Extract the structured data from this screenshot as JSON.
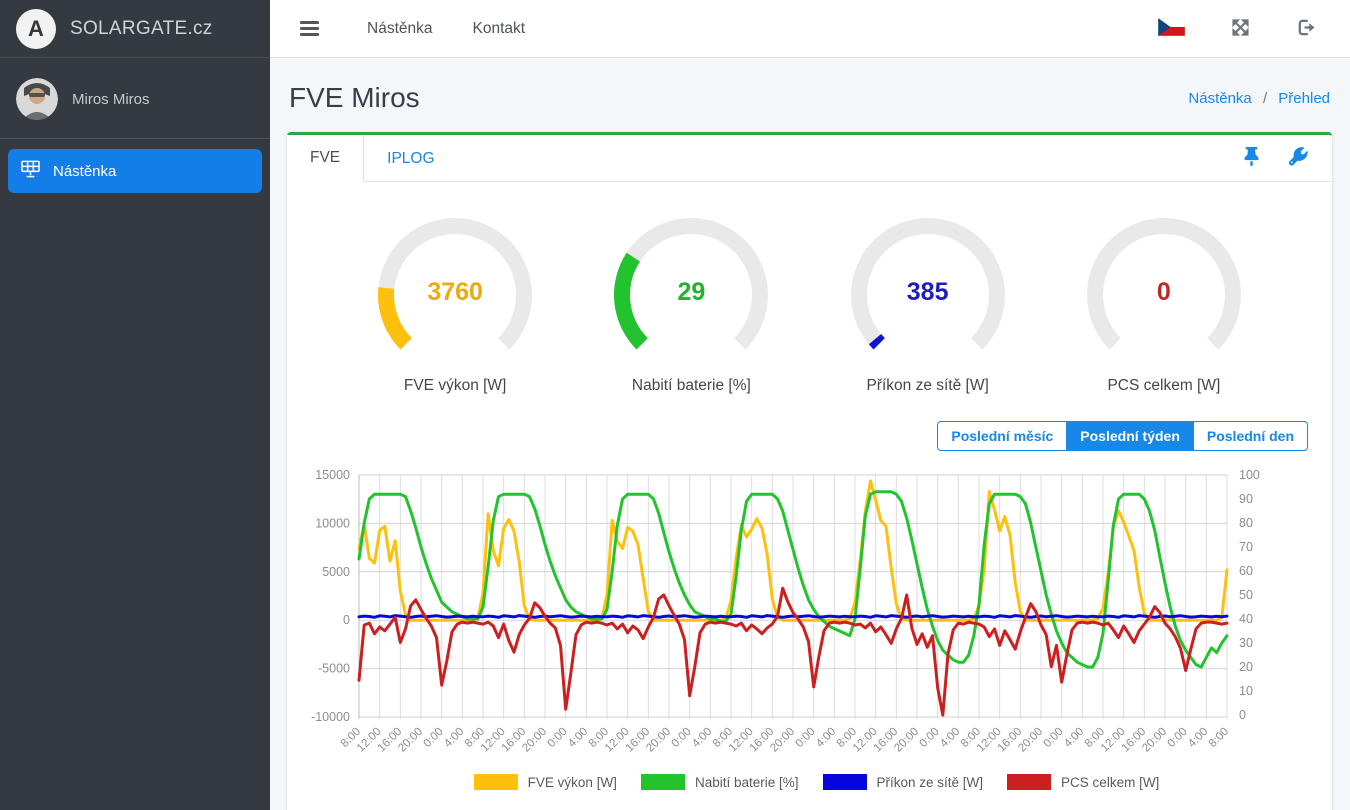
{
  "app": {
    "brand": "SOLARGATE.cz",
    "user": "Miros Miros",
    "logo_letter": "A"
  },
  "colors": {
    "accent": "#1788e8",
    "card_top": "#28a745",
    "sidebar_bg": "#343a40"
  },
  "sidebar": {
    "items": [
      {
        "label": "Nástěnka",
        "icon": "solar-panel-icon",
        "active": true
      }
    ]
  },
  "topnav": {
    "links": [
      "Nástěnka",
      "Kontakt"
    ],
    "icons": [
      "czech-flag-icon",
      "fullscreen-icon",
      "logout-icon"
    ]
  },
  "page": {
    "title": "FVE Miros",
    "breadcrumb": [
      "Nástěnka",
      "Přehled"
    ],
    "separator": "/"
  },
  "card": {
    "tabs": [
      {
        "label": "FVE",
        "active": true
      },
      {
        "label": "IPLOG",
        "active": false
      }
    ],
    "action_icons": [
      "pin-icon",
      "wrench-icon"
    ]
  },
  "gauges": [
    {
      "label": "FVE výkon [W]",
      "value": 3760,
      "max": 20000,
      "color": "#fdc10d",
      "value_color": "#f0a90c"
    },
    {
      "label": "Nabití baterie [%]",
      "value": 29,
      "max": 100,
      "color": "#22c32e",
      "value_color": "#22b32c"
    },
    {
      "label": "Příkon ze sítě [W]",
      "value": 385,
      "max": 20000,
      "color": "#1414c8",
      "value_color": "#1d1dbe"
    },
    {
      "label": "PCS celkem [W]",
      "value": 0,
      "max": 20000,
      "color": "#c42323",
      "value_color": "#c22727"
    }
  ],
  "range_buttons": [
    {
      "label": "Poslední měsíc",
      "active": false
    },
    {
      "label": "Poslední týden",
      "active": true
    },
    {
      "label": "Poslední den",
      "active": false
    }
  ],
  "chart_data": {
    "type": "line",
    "title": "",
    "xlabel": "",
    "ylabel": "",
    "grid": true,
    "legend_position": "bottom",
    "left_axis": {
      "ticks": [
        15000,
        10000,
        5000,
        0,
        -5000,
        -10000
      ],
      "range": [
        -10000,
        15000
      ]
    },
    "right_axis": {
      "ticks": [
        100,
        90,
        80,
        70,
        60,
        50,
        40,
        30,
        20,
        10,
        0
      ],
      "range": [
        0,
        100
      ]
    },
    "x_tick_labels": [
      "8:00",
      "12:00",
      "16:00",
      "20:00",
      "0:00",
      "4:00",
      "8:00",
      "12:00",
      "16:00",
      "20:00",
      "0:00",
      "4:00",
      "8:00",
      "12:00",
      "16:00",
      "20:00",
      "0:00",
      "4:00",
      "8:00",
      "12:00",
      "16:00",
      "20:00",
      "0:00",
      "4:00",
      "8:00",
      "12:00",
      "16:00",
      "20:00",
      "0:00",
      "4:00",
      "8:00",
      "12:00",
      "16:00",
      "20:00",
      "0:00",
      "4:00",
      "8:00",
      "12:00",
      "16:00",
      "20:00",
      "0:00",
      "4:00",
      "8:00"
    ],
    "points_per_hour": 1,
    "x_start": "8:00",
    "days": 7,
    "series": [
      {
        "name": "FVE výkon [W]",
        "color": "#fdc10d",
        "axis": "left",
        "values": [
          7400,
          9900,
          6400,
          5900,
          9300,
          9700,
          6100,
          8200,
          3000,
          600,
          0,
          0,
          0,
          0,
          0,
          0,
          0,
          0,
          0,
          0,
          0,
          0,
          0,
          200,
          2800,
          11000,
          7200,
          5600,
          9500,
          10400,
          9200,
          6000,
          1500,
          100,
          0,
          0,
          0,
          0,
          0,
          0,
          0,
          0,
          0,
          0,
          0,
          0,
          0,
          200,
          2600,
          10300,
          8200,
          7400,
          9600,
          9200,
          7800,
          4300,
          900,
          0,
          0,
          0,
          0,
          0,
          0,
          0,
          0,
          0,
          0,
          0,
          0,
          0,
          0,
          200,
          2000,
          6500,
          9800,
          8600,
          9400,
          10500,
          9500,
          6800,
          2200,
          300,
          0,
          0,
          0,
          0,
          0,
          0,
          0,
          0,
          0,
          0,
          0,
          0,
          0,
          200,
          1800,
          6200,
          11200,
          14400,
          12400,
          10300,
          9700,
          5400,
          1700,
          100,
          0,
          0,
          0,
          0,
          0,
          0,
          0,
          0,
          0,
          0,
          0,
          0,
          0,
          200,
          1500,
          5300,
          13300,
          11400,
          9200,
          10700,
          8800,
          3900,
          900,
          0,
          0,
          0,
          0,
          0,
          0,
          0,
          0,
          0,
          0,
          0,
          0,
          0,
          0,
          200,
          1200,
          4900,
          9600,
          11300,
          10100,
          8700,
          7200,
          3400,
          700,
          0,
          0,
          0,
          0,
          0,
          0,
          0,
          0,
          0,
          0,
          0,
          0,
          0,
          0,
          300,
          5200
        ]
      },
      {
        "name": "Nabití baterie [%]",
        "color": "#22c32e",
        "axis": "right",
        "values": [
          65,
          80,
          90,
          92,
          92,
          92,
          92,
          92,
          92,
          91,
          85,
          78,
          70,
          63,
          57,
          52,
          47,
          45,
          43,
          42,
          41,
          40,
          40,
          40,
          45,
          62,
          81,
          91,
          92,
          92,
          92,
          92,
          92,
          91,
          86,
          79,
          71,
          64,
          58,
          53,
          48,
          45,
          43,
          42,
          41,
          40,
          40,
          40,
          44,
          60,
          79,
          90,
          92,
          92,
          92,
          92,
          92,
          90,
          84,
          76,
          68,
          61,
          55,
          50,
          46,
          43,
          42,
          41,
          40,
          40,
          39,
          39,
          42,
          58,
          77,
          89,
          92,
          92,
          92,
          92,
          92,
          90,
          85,
          77,
          69,
          61,
          54,
          48,
          44,
          41,
          39,
          37,
          36,
          35,
          34,
          33,
          40,
          61,
          83,
          92,
          93,
          93,
          93,
          93,
          92,
          89,
          82,
          73,
          63,
          53,
          44,
          37,
          31,
          27,
          25,
          23,
          22,
          22,
          25,
          33,
          46,
          71,
          88,
          92,
          92,
          92,
          92,
          92,
          91,
          88,
          80,
          70,
          60,
          50,
          42,
          35,
          30,
          26,
          24,
          22,
          21,
          20,
          20,
          24,
          34,
          56,
          79,
          90,
          92,
          92,
          92,
          92,
          90,
          85,
          77,
          66,
          55,
          45,
          37,
          31,
          27,
          24,
          21,
          20,
          24,
          28,
          26,
          30,
          33
        ]
      },
      {
        "name": "Příkon ze sítě [W]",
        "color": "#0707dd",
        "axis": "left",
        "values": [
          350,
          420,
          380,
          300,
          450,
          400,
          340,
          480,
          420,
          360,
          300,
          380,
          430,
          350,
          400,
          460,
          380,
          320,
          360,
          420,
          380,
          340,
          400,
          360,
          350,
          420,
          380,
          300,
          450,
          400,
          340,
          480,
          420,
          360,
          300,
          380,
          430,
          350,
          400,
          460,
          380,
          320,
          360,
          420,
          380,
          340,
          400,
          360,
          350,
          420,
          380,
          300,
          450,
          400,
          340,
          480,
          420,
          360,
          300,
          380,
          430,
          350,
          400,
          460,
          380,
          320,
          360,
          420,
          380,
          340,
          400,
          360,
          350,
          420,
          380,
          300,
          450,
          400,
          340,
          480,
          420,
          360,
          300,
          380,
          430,
          350,
          400,
          460,
          380,
          320,
          360,
          420,
          380,
          340,
          400,
          360,
          350,
          420,
          380,
          300,
          450,
          400,
          340,
          480,
          420,
          360,
          300,
          380,
          430,
          350,
          400,
          460,
          380,
          320,
          360,
          420,
          380,
          340,
          400,
          360,
          350,
          420,
          380,
          300,
          450,
          400,
          340,
          480,
          420,
          360,
          300,
          380,
          430,
          350,
          400,
          460,
          380,
          320,
          360,
          420,
          380,
          340,
          400,
          360,
          350,
          420,
          380,
          300,
          450,
          400,
          340,
          480,
          420,
          360,
          300,
          380,
          430,
          350,
          400,
          460,
          380,
          320,
          360,
          420,
          380,
          340,
          400,
          360,
          420
        ]
      },
      {
        "name": "PCS celkem [W]",
        "color": "#cc2020",
        "axis": "left",
        "values": [
          -6200,
          -500,
          -300,
          -1400,
          -700,
          -1100,
          -400,
          300,
          -2300,
          -900,
          1500,
          2100,
          1100,
          200,
          -600,
          -1800,
          -6700,
          -4200,
          -1200,
          -400,
          -200,
          -300,
          -200,
          -300,
          -400,
          -200,
          -600,
          -1800,
          -400,
          -2100,
          -3300,
          -1500,
          -500,
          200,
          1800,
          1300,
          400,
          -300,
          -800,
          -2600,
          -9200,
          -5500,
          -1500,
          -500,
          -200,
          -300,
          -200,
          -300,
          -500,
          -300,
          -900,
          -400,
          -1300,
          -600,
          -1000,
          -1900,
          -700,
          300,
          2200,
          2600,
          1500,
          500,
          -400,
          -2000,
          -7800,
          -4800,
          -1300,
          -400,
          -200,
          -300,
          -200,
          -300,
          -400,
          -600,
          -300,
          -1100,
          -500,
          -900,
          -1400,
          -800,
          -400,
          400,
          3300,
          1900,
          800,
          100,
          -700,
          -2200,
          -6900,
          -3800,
          -1100,
          -300,
          -200,
          -300,
          -200,
          -300,
          -500,
          -400,
          -800,
          -300,
          -1200,
          -700,
          -1500,
          -2400,
          -900,
          200,
          2600,
          -800,
          -2500,
          -1400,
          -2800,
          -1600,
          -7000,
          -9800,
          -3500,
          -1000,
          -300,
          -400,
          -200,
          -300,
          -400,
          -700,
          -1700,
          -900,
          -2600,
          -1100,
          -2000,
          -3000,
          -1200,
          300,
          1700,
          900,
          -500,
          -1500,
          -4800,
          -2600,
          -6400,
          -3600,
          -1000,
          -300,
          -200,
          -300,
          -200,
          -300,
          -500,
          -300,
          -1000,
          -1800,
          -600,
          -1400,
          -2300,
          -1100,
          -400,
          300,
          1400,
          800,
          -300,
          -900,
          -1700,
          -2900,
          -5200,
          -3000,
          -900,
          -300,
          -200,
          -200,
          -300,
          -400,
          -300
        ]
      }
    ]
  }
}
